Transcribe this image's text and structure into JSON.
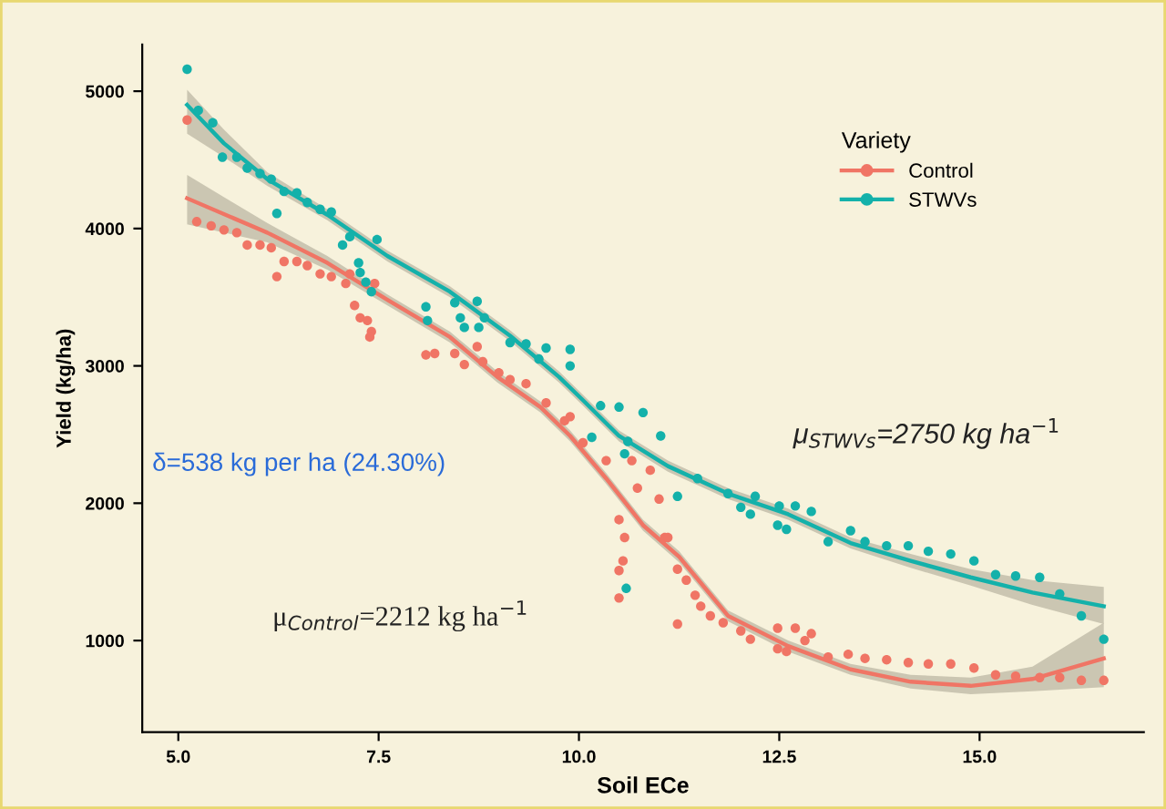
{
  "chart_data": {
    "type": "scatter",
    "xlabel": "Soil ECe",
    "ylabel": "Yield (kg/ha)",
    "legend_title": "Variety",
    "legend": "top right",
    "grid": false,
    "marker": "circle",
    "xlim": [
      4.55,
      17.05
    ],
    "ylim": [
      333,
      5340
    ],
    "xticks": [
      {
        "value": 5,
        "label": "5.0"
      },
      {
        "value": 7.5,
        "label": "7.5"
      },
      {
        "value": 10,
        "label": "10.0"
      },
      {
        "value": 12.5,
        "label": "12.5"
      },
      {
        "value": 15,
        "label": "15.0"
      }
    ],
    "yticks": [
      1000,
      2000,
      3000,
      4000,
      5000
    ],
    "annotations": [
      "δ=538 kg per ha (24.30%)",
      "μ$_{STWVs}$=2750 kg ha$^{−1}$",
      "μ$_{Control}$=2212 kg ha$^{−1}$"
    ],
    "series": [
      {
        "name": "Control",
        "color": "#f07565",
        "x": [
          5.11,
          5.23,
          5.41,
          5.57,
          5.73,
          5.86,
          6.02,
          6.16,
          6.23,
          6.32,
          6.48,
          6.61,
          6.77,
          6.91,
          7.09,
          7.14,
          7.45,
          7.2,
          7.27,
          7.36,
          7.41,
          7.39,
          8.09,
          8.2,
          8.45,
          8.57,
          8.73,
          8.8,
          9.0,
          9.14,
          9.34,
          9.59,
          9.82,
          9.89,
          10.05,
          10.34,
          10.66,
          10.89,
          10.73,
          11.0,
          10.5,
          10.57,
          10.55,
          10.5,
          10.5,
          11.07,
          11.11,
          11.23,
          11.34,
          11.45,
          11.52,
          11.64,
          11.8,
          11.23,
          12.02,
          12.14,
          12.48,
          12.48,
          12.59,
          12.7,
          12.82,
          12.9,
          13.11,
          13.36,
          13.57,
          13.84,
          14.11,
          14.36,
          14.64,
          14.93,
          15.2,
          15.45,
          15.75,
          16.0,
          16.27,
          16.55
        ],
        "values": [
          4790,
          4050,
          4020,
          3990,
          3970,
          3880,
          3880,
          3860,
          3650,
          3760,
          3760,
          3730,
          3670,
          3650,
          3600,
          3670,
          3600,
          3440,
          3350,
          3330,
          3250,
          3210,
          3080,
          3090,
          3090,
          3010,
          3140,
          3030,
          2950,
          2900,
          2870,
          2730,
          2600,
          2630,
          2440,
          2310,
          2310,
          2240,
          2110,
          2030,
          1880,
          1750,
          1580,
          1510,
          1310,
          1750,
          1750,
          1520,
          1440,
          1330,
          1250,
          1180,
          1130,
          1120,
          1070,
          1010,
          1090,
          940,
          920,
          1090,
          1000,
          1050,
          880,
          900,
          870,
          860,
          840,
          830,
          830,
          800,
          750,
          740,
          730,
          730,
          710,
          710
        ]
      },
      {
        "name": "STWVs",
        "color": "#14b1aa",
        "x": [
          5.11,
          5.25,
          5.43,
          5.55,
          5.73,
          5.86,
          6.02,
          6.16,
          6.23,
          6.32,
          6.48,
          6.61,
          6.77,
          6.91,
          7.05,
          7.14,
          7.48,
          7.25,
          7.27,
          7.34,
          7.41,
          8.09,
          8.11,
          8.45,
          8.52,
          8.73,
          8.57,
          8.75,
          8.82,
          9.14,
          9.34,
          9.59,
          9.89,
          9.89,
          9.5,
          10.27,
          10.5,
          10.8,
          11.02,
          10.61,
          10.57,
          10.16,
          10.59,
          11.23,
          11.48,
          11.86,
          12.2,
          12.5,
          12.7,
          12.9,
          12.02,
          12.14,
          12.48,
          12.59,
          13.11,
          13.39,
          13.57,
          13.84,
          14.11,
          14.36,
          14.64,
          14.93,
          15.2,
          15.45,
          15.75,
          16.0,
          16.27,
          16.55
        ],
        "values": [
          5160,
          4860,
          4770,
          4520,
          4520,
          4440,
          4400,
          4360,
          4110,
          4270,
          4260,
          4190,
          4140,
          4120,
          3880,
          3940,
          3920,
          3750,
          3680,
          3610,
          3540,
          3430,
          3330,
          3460,
          3350,
          3470,
          3280,
          3280,
          3350,
          3170,
          3160,
          3130,
          3120,
          3000,
          3050,
          2710,
          2700,
          2660,
          2490,
          2450,
          2360,
          2480,
          1380,
          2050,
          2180,
          2070,
          2050,
          1980,
          1980,
          1940,
          1970,
          1920,
          1840,
          1810,
          1720,
          1800,
          1720,
          1690,
          1690,
          1650,
          1630,
          1580,
          1480,
          1470,
          1460,
          1340,
          1180,
          1010
        ]
      },
      {
        "color": "#f07565",
        "type": "line",
        "marker": "none",
        "x": [
          5.11,
          6.11,
          6.86,
          7.61,
          8.39,
          8.98,
          9.52,
          9.89,
          10.34,
          10.8,
          11.25,
          11.86,
          12.61,
          13.39,
          14.14,
          14.89,
          15.66,
          16.55
        ],
        "values": [
          4220,
          3970,
          3750,
          3480,
          3210,
          2920,
          2700,
          2490,
          2180,
          1840,
          1610,
          1180,
          960,
          790,
          700,
          670,
          720,
          870
        ],
        "lower": [
          4030,
          3900,
          3700,
          3440,
          3170,
          2880,
          2660,
          2450,
          2140,
          1800,
          1570,
          1140,
          920,
          750,
          650,
          610,
          630,
          660
        ],
        "upper": [
          4390,
          4040,
          3800,
          3520,
          3250,
          2960,
          2740,
          2530,
          2220,
          1880,
          1650,
          1220,
          1000,
          830,
          750,
          730,
          810,
          1130
        ]
      },
      {
        "color": "#14b1aa",
        "type": "line",
        "marker": "none",
        "x": [
          5.11,
          5.57,
          6.11,
          6.86,
          7.61,
          8.39,
          9.14,
          9.75,
          10.05,
          10.5,
          11.11,
          11.86,
          12.61,
          13.39,
          14.14,
          14.89,
          15.66,
          16.55
        ],
        "values": [
          4900,
          4620,
          4360,
          4100,
          3800,
          3540,
          3220,
          2920,
          2750,
          2490,
          2270,
          2070,
          1920,
          1710,
          1580,
          1460,
          1350,
          1250
        ],
        "lower": [
          4690,
          4520,
          4310,
          4060,
          3760,
          3500,
          3180,
          2880,
          2710,
          2450,
          2230,
          2030,
          1880,
          1670,
          1530,
          1400,
          1260,
          1120
        ],
        "upper": [
          5010,
          4720,
          4410,
          4140,
          3840,
          3580,
          3260,
          2960,
          2790,
          2530,
          2310,
          2110,
          1960,
          1750,
          1630,
          1520,
          1440,
          1390
        ]
      }
    ]
  }
}
